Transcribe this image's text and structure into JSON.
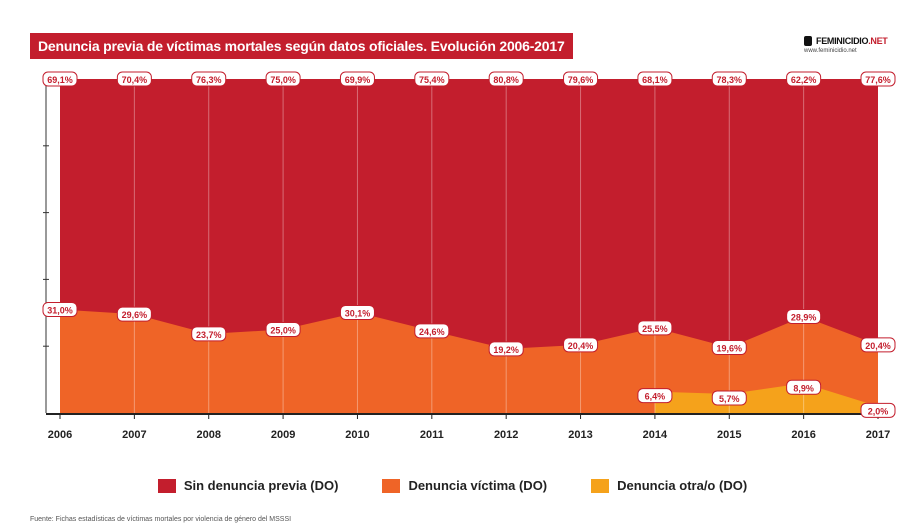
{
  "title": "Denuncia previa de víctimas mortales según datos oficiales. Evolución 2006-2017",
  "logo": {
    "word_a": "FEMINICIDIO",
    "word_b": ".NET",
    "sub": "www.feminicidio.net"
  },
  "source": "Fuente: Fichas estadísticas de víctimas mortales por violencia de género del MSSSI",
  "colors": {
    "sin": "#c31e2d",
    "victima": "#ef6427",
    "otra": "#f5a21b",
    "title_bg": "#c31e2d"
  },
  "chart_data": {
    "type": "area",
    "stacked": true,
    "x": [
      "2006",
      "2007",
      "2008",
      "2009",
      "2010",
      "2011",
      "2012",
      "2013",
      "2014",
      "2015",
      "2016",
      "2017"
    ],
    "ylim": [
      0,
      100
    ],
    "grid": false,
    "legend_placement": "bottom",
    "series": [
      {
        "name": "Sin denuncia previa (DO)",
        "color": "#c31e2d",
        "values": [
          69.1,
          70.4,
          76.3,
          75.0,
          69.9,
          75.4,
          80.8,
          79.6,
          68.1,
          78.3,
          62.2,
          77.6
        ]
      },
      {
        "name": "Denuncia víctima (DO)",
        "color": "#ef6427",
        "values": [
          31.0,
          29.6,
          23.7,
          25.0,
          30.1,
          24.6,
          19.2,
          20.4,
          25.5,
          19.6,
          28.9,
          20.4
        ]
      },
      {
        "name": "Denuncia otra/o (DO)",
        "color": "#f5a21b",
        "values": [
          null,
          null,
          null,
          null,
          null,
          null,
          null,
          null,
          6.4,
          5.7,
          8.9,
          2.0
        ]
      }
    ],
    "labels": {
      "sin": [
        "69,1%",
        "70,4%",
        "76,3%",
        "75,0%",
        "69,9%",
        "75,4%",
        "80,8%",
        "79,6%",
        "68,1%",
        "78,3%",
        "62,2%",
        "77,6%"
      ],
      "victima": [
        "31,0%",
        "29,6%",
        "23,7%",
        "25,0%",
        "30,1%",
        "24,6%",
        "19,2%",
        "20,4%",
        "25,5%",
        "19,6%",
        "28,9%",
        "20,4%"
      ],
      "otra": [
        null,
        null,
        null,
        null,
        null,
        null,
        null,
        null,
        "6,4%",
        "5,7%",
        "8,9%",
        "2,0%"
      ]
    }
  }
}
